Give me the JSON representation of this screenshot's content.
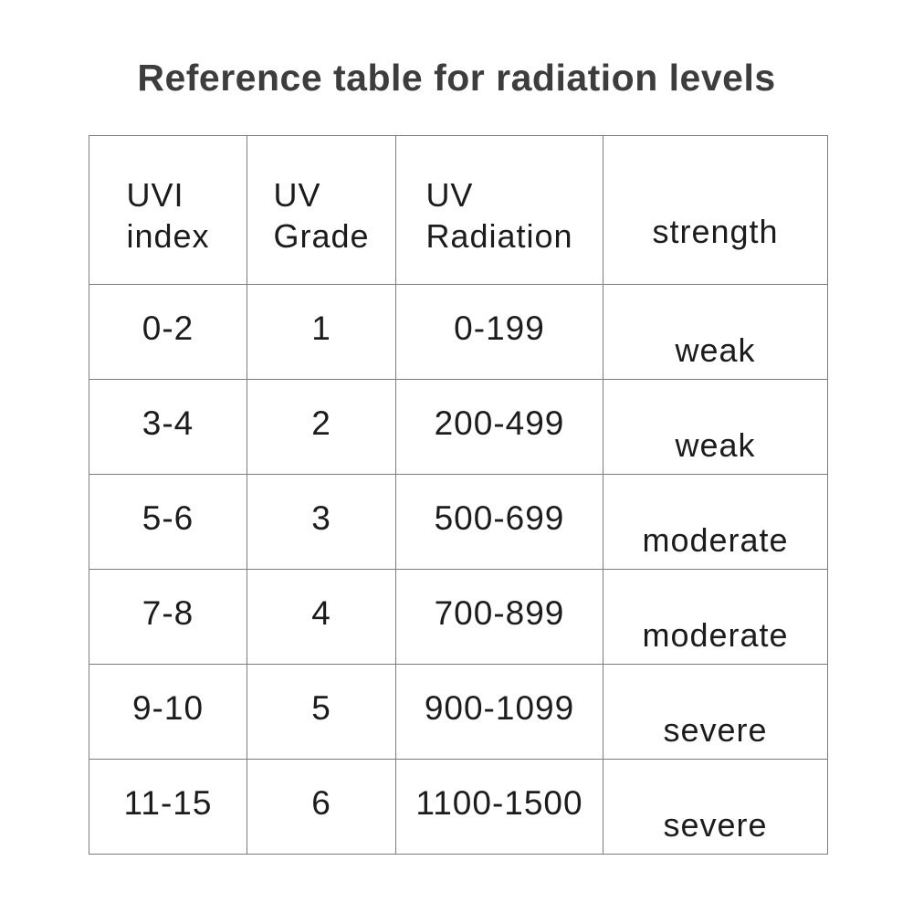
{
  "page": {
    "title": "Reference table for radiation levels"
  },
  "table": {
    "header": [
      {
        "line1": "UVI",
        "line2": "index"
      },
      {
        "line1": "UV",
        "line2": "Grade"
      },
      {
        "line1": "UV",
        "line2": "Radiation"
      },
      {
        "line1": "strength"
      }
    ],
    "rows": [
      [
        "0-2",
        "1",
        "0-199",
        "weak"
      ],
      [
        "3-4",
        "2",
        "200-499",
        "weak"
      ],
      [
        "5-6",
        "3",
        "500-699",
        "moderate"
      ],
      [
        "7-8",
        "4",
        "700-899",
        "moderate"
      ],
      [
        "9-10",
        "5",
        "900-1099",
        "severe"
      ],
      [
        "11-15",
        "6",
        "1100-1500",
        "severe"
      ]
    ]
  },
  "colors": {
    "background": "#ffffff",
    "title_text": "#3d3d3d",
    "cell_text": "#1c1c1c",
    "border": "#7d7d7d"
  },
  "chart_data": {
    "type": "table",
    "title": "Reference table for radiation levels",
    "columns": [
      "UVI index",
      "UV Grade",
      "UV Radiation",
      "strength"
    ],
    "rows": [
      {
        "uvi_index": "0-2",
        "uv_grade": 1,
        "uv_radiation": "0-199",
        "strength": "weak"
      },
      {
        "uvi_index": "3-4",
        "uv_grade": 2,
        "uv_radiation": "200-499",
        "strength": "weak"
      },
      {
        "uvi_index": "5-6",
        "uv_grade": 3,
        "uv_radiation": "500-699",
        "strength": "moderate"
      },
      {
        "uvi_index": "7-8",
        "uv_grade": 4,
        "uv_radiation": "700-899",
        "strength": "moderate"
      },
      {
        "uvi_index": "9-10",
        "uv_grade": 5,
        "uv_radiation": "900-1099",
        "strength": "severe"
      },
      {
        "uvi_index": "11-15",
        "uv_grade": 6,
        "uv_radiation": "1100-1500",
        "strength": "severe"
      }
    ]
  }
}
